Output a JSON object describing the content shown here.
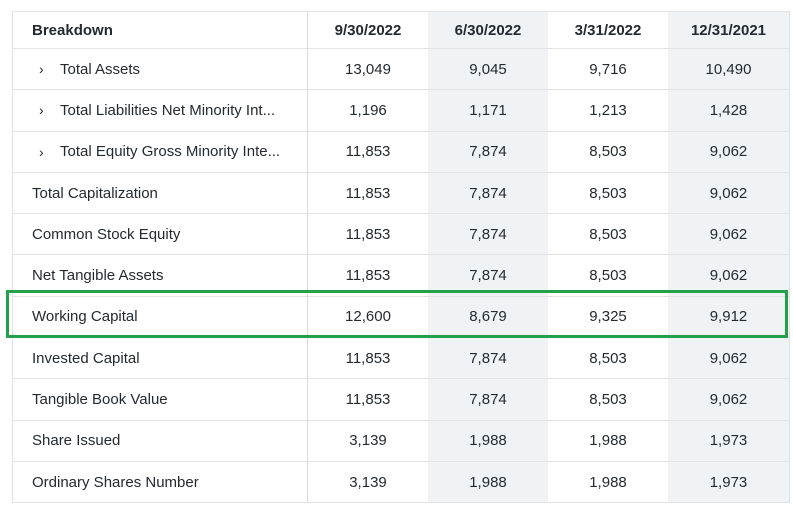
{
  "header": {
    "breakdown": "Breakdown",
    "dates": [
      "9/30/2022",
      "6/30/2022",
      "3/31/2022",
      "12/31/2021"
    ]
  },
  "rows": [
    {
      "label": "Total Assets",
      "expandable": true,
      "values": [
        "13,049",
        "9,045",
        "9,716",
        "10,490"
      ]
    },
    {
      "label": "Total Liabilities Net Minority Int...",
      "expandable": true,
      "values": [
        "1,196",
        "1,171",
        "1,213",
        "1,428"
      ]
    },
    {
      "label": "Total Equity Gross Minority Inte...",
      "expandable": true,
      "values": [
        "11,853",
        "7,874",
        "8,503",
        "9,062"
      ]
    },
    {
      "label": "Total Capitalization",
      "expandable": false,
      "values": [
        "11,853",
        "7,874",
        "8,503",
        "9,062"
      ]
    },
    {
      "label": "Common Stock Equity",
      "expandable": false,
      "values": [
        "11,853",
        "7,874",
        "8,503",
        "9,062"
      ]
    },
    {
      "label": "Net Tangible Assets",
      "expandable": false,
      "values": [
        "11,853",
        "7,874",
        "8,503",
        "9,062"
      ]
    },
    {
      "label": "Working Capital",
      "expandable": false,
      "highlighted": true,
      "values": [
        "12,600",
        "8,679",
        "9,325",
        "9,912"
      ]
    },
    {
      "label": "Invested Capital",
      "expandable": false,
      "values": [
        "11,853",
        "7,874",
        "8,503",
        "9,062"
      ]
    },
    {
      "label": "Tangible Book Value",
      "expandable": false,
      "values": [
        "11,853",
        "7,874",
        "8,503",
        "9,062"
      ]
    },
    {
      "label": "Share Issued",
      "expandable": false,
      "values": [
        "3,139",
        "1,988",
        "1,988",
        "1,973"
      ]
    },
    {
      "label": "Ordinary Shares Number",
      "expandable": false,
      "values": [
        "3,139",
        "1,988",
        "1,988",
        "1,973"
      ]
    }
  ],
  "icons": {
    "expand": "chevron-right-icon"
  },
  "colors": {
    "highlight_border": "#22a14a",
    "alt_column": "#f0f3f5"
  }
}
